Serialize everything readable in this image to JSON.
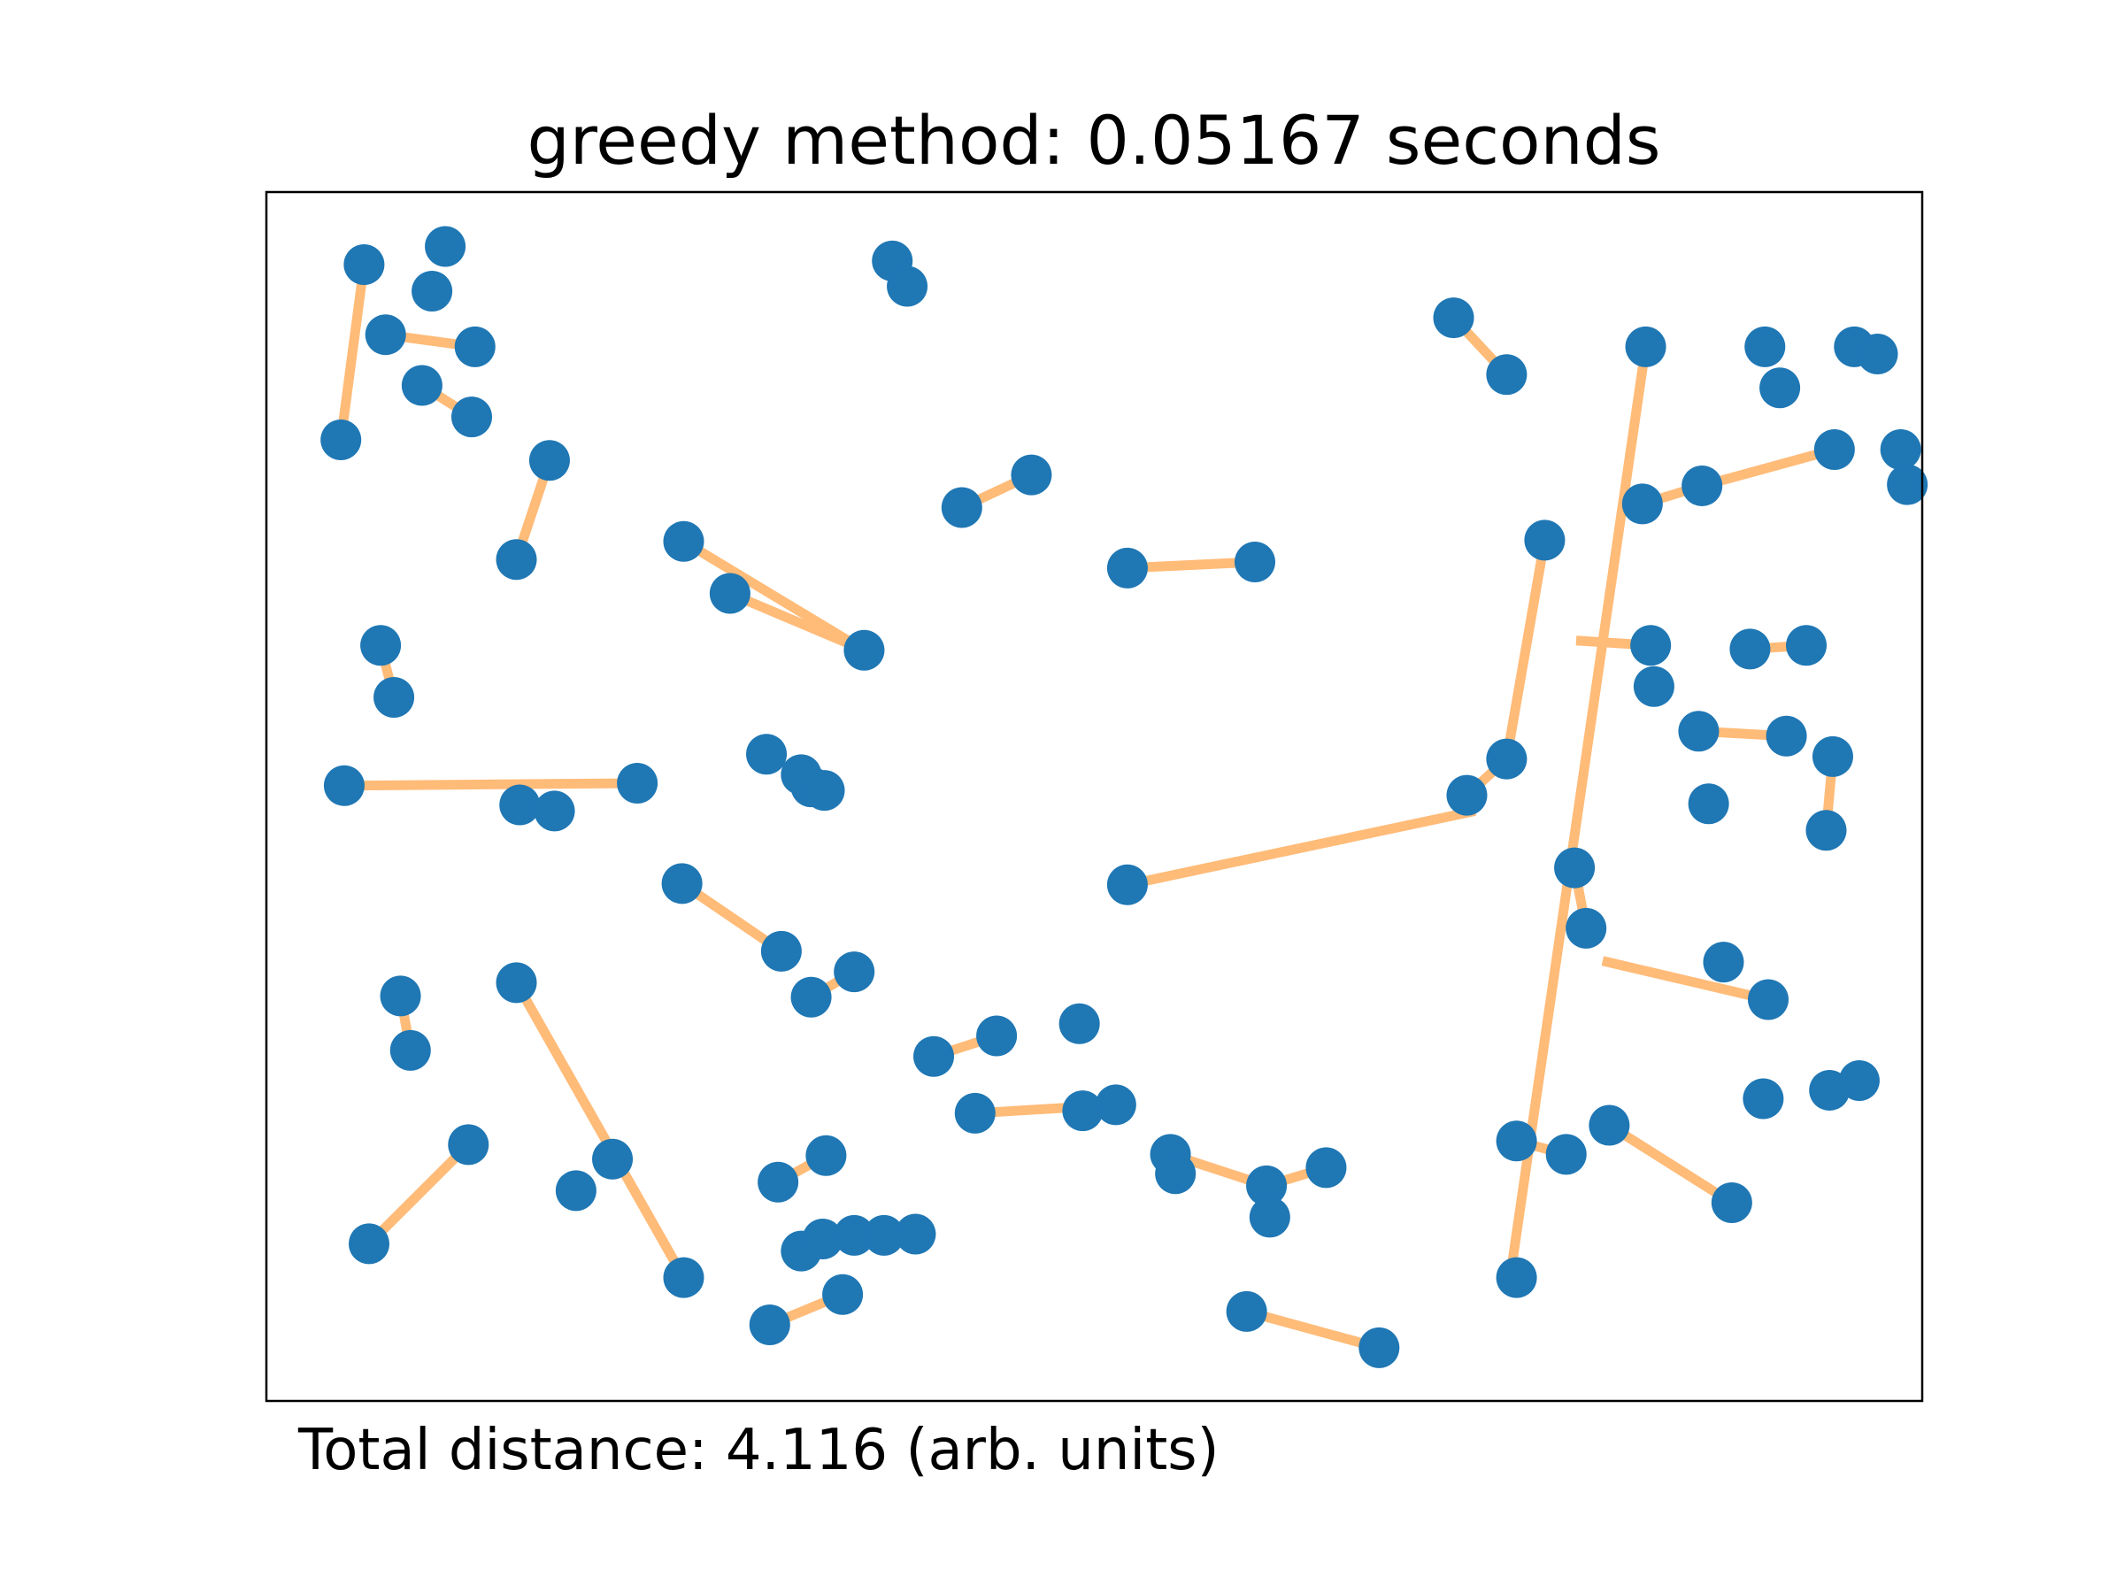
{
  "chart_data": {
    "type": "scatter",
    "title": "greedy method: 0.05167 seconds",
    "caption": "Total distance: 4.116 (arb. units)",
    "xlim": [
      0,
      1
    ],
    "ylim": [
      0,
      1
    ],
    "grid": false,
    "axis_ticks": false,
    "point_color": "#1f77b4",
    "edge_color": "#ffbb78",
    "points": [
      [
        0.059,
        0.94
      ],
      [
        0.108,
        0.955
      ],
      [
        0.1,
        0.918
      ],
      [
        0.072,
        0.882
      ],
      [
        0.126,
        0.872
      ],
      [
        0.094,
        0.84
      ],
      [
        0.124,
        0.814
      ],
      [
        0.045,
        0.795
      ],
      [
        0.171,
        0.778
      ],
      [
        0.151,
        0.696
      ],
      [
        0.069,
        0.625
      ],
      [
        0.077,
        0.582
      ],
      [
        0.047,
        0.509
      ],
      [
        0.224,
        0.511
      ],
      [
        0.153,
        0.493
      ],
      [
        0.174,
        0.488
      ],
      [
        0.252,
        0.711
      ],
      [
        0.28,
        0.668
      ],
      [
        0.361,
        0.621
      ],
      [
        0.302,
        0.535
      ],
      [
        0.323,
        0.518
      ],
      [
        0.329,
        0.508
      ],
      [
        0.337,
        0.505
      ],
      [
        0.378,
        0.943
      ],
      [
        0.387,
        0.922
      ],
      [
        0.42,
        0.739
      ],
      [
        0.462,
        0.766
      ],
      [
        0.717,
        0.896
      ],
      [
        0.749,
        0.849
      ],
      [
        0.833,
        0.872
      ],
      [
        0.905,
        0.872
      ],
      [
        0.914,
        0.838
      ],
      [
        0.959,
        0.872
      ],
      [
        0.973,
        0.866
      ],
      [
        0.947,
        0.787
      ],
      [
        0.987,
        0.787
      ],
      [
        0.991,
        0.758
      ],
      [
        0.867,
        0.757
      ],
      [
        0.831,
        0.742
      ],
      [
        0.772,
        0.712
      ],
      [
        0.52,
        0.689
      ],
      [
        0.597,
        0.694
      ],
      [
        0.836,
        0.625
      ],
      [
        0.838,
        0.591
      ],
      [
        0.896,
        0.622
      ],
      [
        0.93,
        0.625
      ],
      [
        0.865,
        0.554
      ],
      [
        0.918,
        0.55
      ],
      [
        0.749,
        0.531
      ],
      [
        0.725,
        0.501
      ],
      [
        0.871,
        0.494
      ],
      [
        0.52,
        0.427
      ],
      [
        0.79,
        0.441
      ],
      [
        0.797,
        0.391
      ],
      [
        0.946,
        0.533
      ],
      [
        0.942,
        0.472
      ],
      [
        0.081,
        0.335
      ],
      [
        0.151,
        0.346
      ],
      [
        0.087,
        0.29
      ],
      [
        0.251,
        0.428
      ],
      [
        0.311,
        0.372
      ],
      [
        0.329,
        0.334
      ],
      [
        0.355,
        0.355
      ],
      [
        0.403,
        0.285
      ],
      [
        0.441,
        0.302
      ],
      [
        0.491,
        0.312
      ],
      [
        0.428,
        0.238
      ],
      [
        0.513,
        0.245
      ],
      [
        0.493,
        0.24
      ],
      [
        0.122,
        0.212
      ],
      [
        0.062,
        0.13
      ],
      [
        0.187,
        0.174
      ],
      [
        0.209,
        0.2
      ],
      [
        0.252,
        0.102
      ],
      [
        0.309,
        0.181
      ],
      [
        0.338,
        0.203
      ],
      [
        0.323,
        0.124
      ],
      [
        0.336,
        0.134
      ],
      [
        0.355,
        0.137
      ],
      [
        0.373,
        0.137
      ],
      [
        0.392,
        0.138
      ],
      [
        0.304,
        0.063
      ],
      [
        0.348,
        0.088
      ],
      [
        0.546,
        0.204
      ],
      [
        0.549,
        0.188
      ],
      [
        0.604,
        0.178
      ],
      [
        0.606,
        0.152
      ],
      [
        0.64,
        0.193
      ],
      [
        0.592,
        0.074
      ],
      [
        0.672,
        0.044
      ],
      [
        0.755,
        0.215
      ],
      [
        0.785,
        0.204
      ],
      [
        0.811,
        0.228
      ],
      [
        0.755,
        0.102
      ],
      [
        0.907,
        0.332
      ],
      [
        0.88,
        0.363
      ],
      [
        0.962,
        0.265
      ],
      [
        0.885,
        0.164
      ],
      [
        0.904,
        0.25
      ],
      [
        0.944,
        0.257
      ]
    ],
    "edges": [
      [
        [
          0.045,
          0.795
        ],
        [
          0.059,
          0.94
        ]
      ],
      [
        [
          0.072,
          0.882
        ],
        [
          0.126,
          0.872
        ]
      ],
      [
        [
          0.094,
          0.84
        ],
        [
          0.124,
          0.814
        ]
      ],
      [
        [
          0.151,
          0.696
        ],
        [
          0.171,
          0.778
        ]
      ],
      [
        [
          0.069,
          0.625
        ],
        [
          0.077,
          0.582
        ]
      ],
      [
        [
          0.047,
          0.509
        ],
        [
          0.224,
          0.511
        ]
      ],
      [
        [
          0.28,
          0.668
        ],
        [
          0.361,
          0.621
        ]
      ],
      [
        [
          0.252,
          0.711
        ],
        [
          0.361,
          0.621
        ]
      ],
      [
        [
          0.42,
          0.739
        ],
        [
          0.462,
          0.766
        ]
      ],
      [
        [
          0.52,
          0.689
        ],
        [
          0.597,
          0.694
        ]
      ],
      [
        [
          0.717,
          0.896
        ],
        [
          0.749,
          0.849
        ]
      ],
      [
        [
          0.833,
          0.872
        ],
        [
          0.751,
          0.101
        ]
      ],
      [
        [
          0.867,
          0.757
        ],
        [
          0.831,
          0.742
        ]
      ],
      [
        [
          0.947,
          0.787
        ],
        [
          0.867,
          0.757
        ]
      ],
      [
        [
          0.772,
          0.712
        ],
        [
          0.749,
          0.531
        ]
      ],
      [
        [
          0.836,
          0.625
        ],
        [
          0.791,
          0.629
        ]
      ],
      [
        [
          0.896,
          0.622
        ],
        [
          0.93,
          0.625
        ]
      ],
      [
        [
          0.865,
          0.554
        ],
        [
          0.918,
          0.55
        ]
      ],
      [
        [
          0.749,
          0.531
        ],
        [
          0.725,
          0.501
        ]
      ],
      [
        [
          0.52,
          0.427
        ],
        [
          0.73,
          0.488
        ]
      ],
      [
        [
          0.79,
          0.441
        ],
        [
          0.797,
          0.391
        ]
      ],
      [
        [
          0.946,
          0.533
        ],
        [
          0.942,
          0.472
        ]
      ],
      [
        [
          0.081,
          0.335
        ],
        [
          0.087,
          0.29
        ]
      ],
      [
        [
          0.151,
          0.346
        ],
        [
          0.252,
          0.102
        ]
      ],
      [
        [
          0.251,
          0.428
        ],
        [
          0.311,
          0.372
        ]
      ],
      [
        [
          0.329,
          0.334
        ],
        [
          0.355,
          0.355
        ]
      ],
      [
        [
          0.403,
          0.285
        ],
        [
          0.441,
          0.302
        ]
      ],
      [
        [
          0.428,
          0.238
        ],
        [
          0.513,
          0.245
        ]
      ],
      [
        [
          0.122,
          0.212
        ],
        [
          0.062,
          0.13
        ]
      ],
      [
        [
          0.309,
          0.181
        ],
        [
          0.338,
          0.203
        ]
      ],
      [
        [
          0.304,
          0.063
        ],
        [
          0.348,
          0.088
        ]
      ],
      [
        [
          0.546,
          0.204
        ],
        [
          0.604,
          0.178
        ]
      ],
      [
        [
          0.604,
          0.178
        ],
        [
          0.64,
          0.193
        ]
      ],
      [
        [
          0.592,
          0.074
        ],
        [
          0.672,
          0.044
        ]
      ],
      [
        [
          0.755,
          0.215
        ],
        [
          0.785,
          0.204
        ]
      ],
      [
        [
          0.811,
          0.228
        ],
        [
          0.885,
          0.164
        ]
      ],
      [
        [
          0.807,
          0.364
        ],
        [
          0.907,
          0.332
        ]
      ]
    ]
  }
}
